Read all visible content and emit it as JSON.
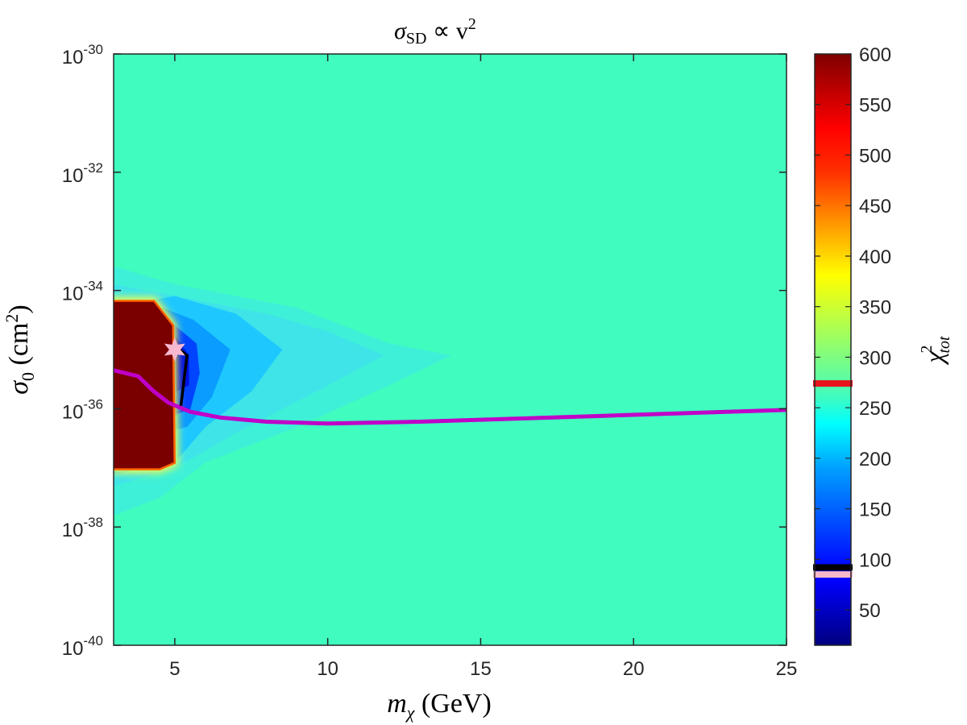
{
  "chart_data": {
    "type": "heatmap",
    "title": {
      "main": "σ",
      "sub": "SD",
      "rest": " ∝ v",
      "sup": "2"
    },
    "xlabel": {
      "main": "m",
      "sub": "χ",
      "rest": " (GeV)"
    },
    "ylabel": {
      "main": "σ",
      "sub": "0",
      "rest": " (cm",
      "sup": "2",
      "tail": ")"
    },
    "colorbar_label": {
      "main": "χ",
      "sup": "2",
      "sub": "tot"
    },
    "xlim": [
      3,
      25
    ],
    "ylim_log10": [
      -40,
      -30
    ],
    "yscale": "log",
    "x_ticks": [
      5,
      10,
      15,
      20,
      25
    ],
    "y_ticks": [
      {
        "base": "10",
        "exp": "-30",
        "value": -30
      },
      {
        "base": "10",
        "exp": "-32",
        "value": -32
      },
      {
        "base": "10",
        "exp": "-34",
        "value": -34
      },
      {
        "base": "10",
        "exp": "-36",
        "value": -36
      },
      {
        "base": "10",
        "exp": "-38",
        "value": -38
      },
      {
        "base": "10",
        "exp": "-40",
        "value": -40
      }
    ],
    "colorbar": {
      "range": [
        15,
        600
      ],
      "ticks": [
        50,
        100,
        150,
        200,
        250,
        300,
        350,
        400,
        450,
        500,
        550,
        600
      ],
      "colormap": "jet",
      "markers": [
        {
          "value": 274,
          "color": "#e8141c"
        },
        {
          "value": 92,
          "color": "#000000"
        },
        {
          "value": 85,
          "color": "#f5b8c8"
        }
      ]
    },
    "background_color": "#40fcbf",
    "regions": [
      {
        "name": "light-blue",
        "color": "#3ff0d8",
        "points": [
          [
            3,
            -33.6
          ],
          [
            5,
            -33.9
          ],
          [
            7,
            -34.1
          ],
          [
            9,
            -34.3
          ],
          [
            12,
            -34.9
          ],
          [
            14,
            -35.1
          ],
          [
            12,
            -35.6
          ],
          [
            9,
            -36.3
          ],
          [
            6,
            -36.9
          ],
          [
            4.5,
            -37.5
          ],
          [
            3,
            -37.8
          ]
        ]
      },
      {
        "name": "light-blue-2",
        "color": "#3fe4e8",
        "points": [
          [
            3,
            -33.9
          ],
          [
            5,
            -34.1
          ],
          [
            8,
            -34.4
          ],
          [
            10,
            -34.7
          ],
          [
            11.8,
            -35.1
          ],
          [
            10,
            -35.6
          ],
          [
            7,
            -36.4
          ],
          [
            5,
            -37.0
          ],
          [
            3,
            -37.3
          ]
        ]
      },
      {
        "name": "outer-ring",
        "color": "#1ec8ff",
        "points": [
          [
            3,
            -34.3
          ],
          [
            5,
            -34.1
          ],
          [
            7,
            -34.4
          ],
          [
            8.5,
            -35.0
          ],
          [
            7.5,
            -35.7
          ],
          [
            6,
            -36.3
          ],
          [
            5,
            -36.9
          ],
          [
            3,
            -37.1
          ]
        ]
      },
      {
        "name": "mid-blue",
        "color": "#0a9cff",
        "points": [
          [
            4.6,
            -34.3
          ],
          [
            5.6,
            -34.5
          ],
          [
            6.8,
            -35.0
          ],
          [
            6.2,
            -35.8
          ],
          [
            5.4,
            -36.3
          ],
          [
            4.6,
            -36.4
          ]
        ]
      },
      {
        "name": "deep-blue",
        "color": "#0044ff",
        "points": [
          [
            5,
            -34.6
          ],
          [
            5.7,
            -34.9
          ],
          [
            5.8,
            -35.4
          ],
          [
            5.5,
            -36.0
          ],
          [
            5,
            -36.1
          ]
        ]
      },
      {
        "name": "core",
        "color": "#0010e0",
        "points": [
          [
            5.05,
            -34.8
          ],
          [
            5.45,
            -35.1
          ],
          [
            5.45,
            -35.6
          ],
          [
            5.05,
            -35.7
          ]
        ]
      },
      {
        "name": "exclusion-red",
        "color": "#7a0000",
        "points": [
          [
            3,
            -34.2
          ],
          [
            4.3,
            -34.2
          ],
          [
            4.9,
            -34.6
          ],
          [
            4.95,
            -36.9
          ],
          [
            4.5,
            -37.0
          ],
          [
            3,
            -37.0
          ]
        ]
      }
    ],
    "series": [
      {
        "color": "#c000c8",
        "x": [
          3,
          3.8,
          4.3,
          4.8,
          5.5,
          6.5,
          8,
          10,
          13,
          16,
          19,
          22,
          25
        ],
        "y": [
          -35.35,
          -35.45,
          -35.7,
          -35.9,
          -36.05,
          -36.15,
          -36.22,
          -36.25,
          -36.22,
          -36.17,
          -36.12,
          -36.07,
          -36.02
        ]
      },
      {
        "color": "#000000",
        "x": [
          5.15,
          5.4,
          5.2
        ],
        "y": [
          -35.0,
          -35.1,
          -35.95
        ]
      }
    ],
    "best_fit": {
      "x": 5.0,
      "y": -35.0,
      "color": "#f8b8d0"
    }
  }
}
